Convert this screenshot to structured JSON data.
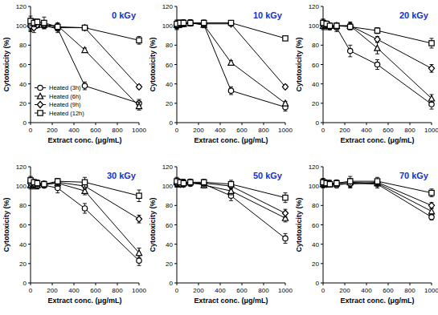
{
  "chart_data": [
    {
      "type": "line",
      "title": "0 kGy",
      "x_label": "Extract conc. (μg/mL)",
      "y_label": "Cytotoxicity (%)",
      "x": [
        0,
        31.25,
        62.5,
        125,
        250,
        500,
        1000
      ],
      "xlim": [
        0,
        1000
      ],
      "xticks": [
        0,
        200,
        400,
        600,
        800,
        1000
      ],
      "ylim": [
        0,
        120
      ],
      "yticks": [
        0,
        20,
        40,
        60,
        80,
        100,
        120
      ],
      "legend": "lower left",
      "series": [
        {
          "name": "Heated (3h)",
          "color": "#000000",
          "marker": "circle",
          "values": [
            100,
            102,
            103,
            100,
            97,
            38,
            20
          ],
          "errors": [
            5,
            4,
            3,
            3,
            4,
            4,
            4
          ]
        },
        {
          "name": "Heated (6h)",
          "color": "#000000",
          "marker": "triangle",
          "values": [
            102,
            100,
            101,
            101,
            100,
            75,
            17
          ],
          "errors": [
            6,
            4,
            3,
            3,
            3,
            2,
            4
          ]
        },
        {
          "name": "Heated (9h)",
          "color": "#000000",
          "marker": "diamond",
          "values": [
            100,
            98,
            101,
            101,
            98,
            98,
            37
          ],
          "errors": [
            6,
            5,
            3,
            3,
            3,
            2,
            2
          ]
        },
        {
          "name": "Heated (12h)",
          "color": "#000000",
          "marker": "square",
          "values": [
            105,
            103,
            104,
            103,
            99,
            98,
            85
          ],
          "errors": [
            5,
            4,
            3,
            6,
            3,
            2,
            4
          ]
        }
      ]
    },
    {
      "type": "line",
      "title": "10 kGy",
      "x_label": "Extract conc. (μg/mL)",
      "y_label": "Cytotoxicity (%)",
      "x": [
        0,
        31.25,
        62.5,
        125,
        250,
        500,
        1000
      ],
      "xlim": [
        0,
        1000
      ],
      "xticks": [
        0,
        200,
        400,
        600,
        800,
        1000
      ],
      "ylim": [
        0,
        120
      ],
      "yticks": [
        0,
        20,
        40,
        60,
        80,
        100,
        120
      ],
      "series": [
        {
          "name": "Heated (3h)",
          "color": "#000000",
          "marker": "circle",
          "values": [
            100,
            101,
            102,
            103,
            101,
            33,
            16
          ],
          "errors": [
            4,
            3,
            3,
            3,
            3,
            4,
            4
          ]
        },
        {
          "name": "Heated (6h)",
          "color": "#000000",
          "marker": "triangle",
          "values": [
            101,
            102,
            102,
            103,
            101,
            62,
            20
          ],
          "errors": [
            4,
            3,
            3,
            3,
            3,
            2,
            2
          ]
        },
        {
          "name": "Heated (9h)",
          "color": "#000000",
          "marker": "diamond",
          "values": [
            101,
            102,
            103,
            103,
            102,
            102,
            37
          ],
          "errors": [
            4,
            3,
            3,
            3,
            3,
            2,
            2
          ]
        },
        {
          "name": "Heated (12h)",
          "color": "#000000",
          "marker": "square",
          "values": [
            102,
            103,
            103,
            103,
            103,
            103,
            87
          ],
          "errors": [
            4,
            3,
            3,
            3,
            3,
            2,
            2
          ]
        }
      ]
    },
    {
      "type": "line",
      "title": "20 kGy",
      "x_label": "Extract conc. (μg/mL)",
      "y_label": "Cytotoxicity (%)",
      "x": [
        0,
        31.25,
        62.5,
        125,
        250,
        500,
        1000
      ],
      "xlim": [
        0,
        1000
      ],
      "xticks": [
        0,
        200,
        400,
        600,
        800,
        1000
      ],
      "ylim": [
        0,
        120
      ],
      "yticks": [
        0,
        20,
        40,
        60,
        80,
        100,
        120
      ],
      "series": [
        {
          "name": "Heated (3h)",
          "color": "#000000",
          "marker": "circle",
          "values": [
            102,
            100,
            99,
            98,
            74,
            60,
            19
          ],
          "errors": [
            4,
            4,
            3,
            4,
            6,
            5,
            5
          ]
        },
        {
          "name": "Heated (6h)",
          "color": "#000000",
          "marker": "triangle",
          "values": [
            100,
            101,
            100,
            100,
            100,
            77,
            25
          ],
          "errors": [
            4,
            3,
            3,
            3,
            4,
            6,
            4
          ]
        },
        {
          "name": "Heated (9h)",
          "color": "#000000",
          "marker": "diamond",
          "values": [
            101,
            101,
            99,
            100,
            100,
            86,
            56
          ],
          "errors": [
            4,
            3,
            3,
            3,
            3,
            3,
            4
          ]
        },
        {
          "name": "Heated (12h)",
          "color": "#000000",
          "marker": "square",
          "values": [
            103,
            102,
            100,
            100,
            99,
            95,
            82
          ],
          "errors": [
            4,
            3,
            3,
            3,
            3,
            3,
            5
          ]
        }
      ]
    },
    {
      "type": "line",
      "title": "30 kGy",
      "x_label": "Extract conc. (μg/mL)",
      "y_label": "Cytotoxicity (%)",
      "x": [
        0,
        31.25,
        62.5,
        125,
        250,
        500,
        1000
      ],
      "xlim": [
        0,
        1000
      ],
      "xticks": [
        0,
        200,
        400,
        600,
        800,
        1000
      ],
      "ylim": [
        0,
        120
      ],
      "yticks": [
        0,
        20,
        40,
        60,
        80,
        100,
        120
      ],
      "series": [
        {
          "name": "Heated (3h)",
          "color": "#000000",
          "marker": "circle",
          "values": [
            104,
            102,
            100,
            101,
            98,
            77,
            23
          ],
          "errors": [
            5,
            4,
            3,
            3,
            5,
            5,
            5
          ]
        },
        {
          "name": "Heated (6h)",
          "color": "#000000",
          "marker": "triangle",
          "values": [
            101,
            101,
            101,
            102,
            103,
            95,
            31
          ],
          "errors": [
            4,
            4,
            3,
            3,
            3,
            4,
            5
          ]
        },
        {
          "name": "Heated (9h)",
          "color": "#000000",
          "marker": "diamond",
          "values": [
            103,
            102,
            103,
            101,
            104,
            100,
            66
          ],
          "errors": [
            4,
            3,
            3,
            3,
            3,
            3,
            4
          ]
        },
        {
          "name": "Heated (12h)",
          "color": "#000000",
          "marker": "square",
          "values": [
            106,
            104,
            103,
            102,
            105,
            104,
            90
          ],
          "errors": [
            4,
            3,
            3,
            3,
            3,
            5,
            6
          ]
        }
      ]
    },
    {
      "type": "line",
      "title": "50 kGy",
      "x_label": "Extract conc. (μg/mL)",
      "y_label": "Cytotoxicity (%)",
      "x": [
        0,
        31.25,
        62.5,
        125,
        250,
        500,
        1000
      ],
      "xlim": [
        0,
        1000
      ],
      "xticks": [
        0,
        200,
        400,
        600,
        800,
        1000
      ],
      "ylim": [
        0,
        120
      ],
      "yticks": [
        0,
        20,
        40,
        60,
        80,
        100,
        120
      ],
      "series": [
        {
          "name": "Heated (3h)",
          "color": "#000000",
          "marker": "circle",
          "values": [
            103,
            102,
            104,
            103,
            102,
            90,
            46
          ],
          "errors": [
            4,
            3,
            3,
            3,
            4,
            5,
            5
          ]
        },
        {
          "name": "Heated (6h)",
          "color": "#000000",
          "marker": "triangle",
          "values": [
            104,
            103,
            103,
            104,
            101,
            95,
            67
          ],
          "errors": [
            4,
            3,
            3,
            3,
            3,
            4,
            4
          ]
        },
        {
          "name": "Heated (9h)",
          "color": "#000000",
          "marker": "diamond",
          "values": [
            103,
            102,
            102,
            103,
            103,
            100,
            72
          ],
          "errors": [
            4,
            3,
            3,
            3,
            3,
            3,
            4
          ]
        },
        {
          "name": "Heated (12h)",
          "color": "#000000",
          "marker": "square",
          "values": [
            105,
            104,
            103,
            104,
            104,
            102,
            88
          ],
          "errors": [
            4,
            3,
            3,
            3,
            3,
            4,
            5
          ]
        }
      ]
    },
    {
      "type": "line",
      "title": "70 kGy",
      "x_label": "Extract conc. (μg/mL)",
      "y_label": "Cytotoxicity (%)",
      "x": [
        0,
        31.25,
        62.5,
        125,
        250,
        500,
        1000
      ],
      "xlim": [
        0,
        1000
      ],
      "xticks": [
        0,
        200,
        400,
        600,
        800,
        1000
      ],
      "ylim": [
        0,
        120
      ],
      "yticks": [
        0,
        20,
        40,
        60,
        80,
        100,
        120
      ],
      "series": [
        {
          "name": "Heated (3h)",
          "color": "#000000",
          "marker": "circle",
          "values": [
            103,
            102,
            102,
            101,
            103,
            102,
            68
          ],
          "errors": [
            4,
            3,
            3,
            3,
            4,
            4,
            3
          ]
        },
        {
          "name": "Heated (6h)",
          "color": "#000000",
          "marker": "triangle",
          "values": [
            102,
            103,
            102,
            103,
            104,
            103,
            74
          ],
          "errors": [
            4,
            3,
            3,
            3,
            4,
            3,
            3
          ]
        },
        {
          "name": "Heated (9h)",
          "color": "#000000",
          "marker": "diamond",
          "values": [
            103,
            102,
            103,
            103,
            102,
            104,
            80
          ],
          "errors": [
            4,
            3,
            3,
            3,
            4,
            3,
            3
          ]
        },
        {
          "name": "Heated (12h)",
          "color": "#000000",
          "marker": "square",
          "values": [
            104,
            103,
            102,
            103,
            105,
            105,
            93
          ],
          "errors": [
            4,
            3,
            3,
            3,
            5,
            4,
            4
          ]
        }
      ]
    }
  ]
}
